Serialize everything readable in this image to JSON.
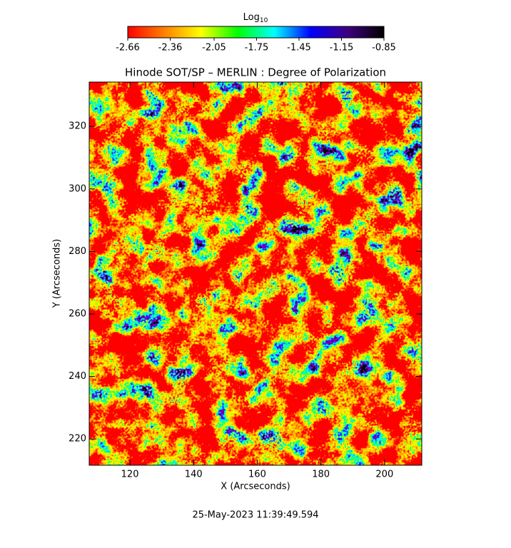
{
  "chart_data": {
    "type": "heatmap",
    "title": "Hinode SOT/SP – MERLIN : Degree of Polarization",
    "x_label": "X (Arcseconds)",
    "y_label": "Y (Arcseconds)",
    "xlim": [
      107.2,
      211.7
    ],
    "xticks": [
      120,
      140,
      160,
      180,
      200
    ],
    "ylim": [
      211.6,
      334.2
    ],
    "yticks": [
      220,
      240,
      260,
      280,
      300,
      320
    ],
    "colorbar": {
      "label": "Log",
      "label_subscript": "10",
      "lim": [
        -2.66,
        -0.85
      ],
      "ticks": [
        -2.66,
        -2.36,
        -2.05,
        -1.75,
        -1.45,
        -1.15,
        -0.85
      ],
      "colormap": [
        "#ff0000",
        "#ff8000",
        "#ffff00",
        "#00ff00",
        "#00ffff",
        "#0000ff",
        "#400080",
        "#000000"
      ]
    },
    "footer": "25-May-2023 11:39:49.594"
  }
}
